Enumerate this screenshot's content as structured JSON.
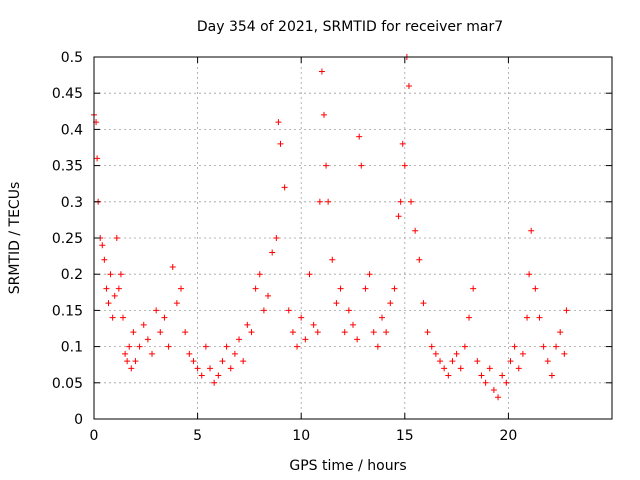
{
  "chart_data": {
    "type": "scatter",
    "title": "Day 354 of 2021, SRMTID for receiver mar7",
    "xlabel": "GPS time / hours",
    "ylabel": "SRMTID / TECUs",
    "xlim": [
      0,
      25
    ],
    "ylim": [
      0,
      0.5
    ],
    "grid": true,
    "marker": "+",
    "x_ticks": [
      {
        "value": 0,
        "label": "0"
      },
      {
        "value": 5,
        "label": "5"
      },
      {
        "value": 10,
        "label": "10"
      },
      {
        "value": 15,
        "label": "15"
      },
      {
        "value": 20,
        "label": "20"
      }
    ],
    "y_ticks": [
      {
        "value": 0,
        "label": "0"
      },
      {
        "value": 0.05,
        "label": "0.05"
      },
      {
        "value": 0.1,
        "label": "0.1"
      },
      {
        "value": 0.15,
        "label": "0.15"
      },
      {
        "value": 0.2,
        "label": "0.2"
      },
      {
        "value": 0.25,
        "label": "0.25"
      },
      {
        "value": 0.3,
        "label": "0.3"
      },
      {
        "value": 0.35,
        "label": "0.35"
      },
      {
        "value": 0.4,
        "label": "0.4"
      },
      {
        "value": 0.45,
        "label": "0.45"
      },
      {
        "value": 0.5,
        "label": "0.5"
      }
    ],
    "series": [
      {
        "name": "SRMTID",
        "color": "#ff0000",
        "x": [
          0.0,
          0.1,
          0.15,
          0.2,
          0.3,
          0.4,
          0.5,
          0.6,
          0.7,
          0.8,
          0.9,
          1.0,
          1.1,
          1.2,
          1.3,
          1.4,
          1.5,
          1.6,
          1.7,
          1.8,
          1.9,
          2.0,
          2.2,
          2.4,
          2.6,
          2.8,
          3.0,
          3.2,
          3.4,
          3.6,
          3.8,
          4.0,
          4.2,
          4.4,
          4.6,
          4.8,
          5.0,
          5.2,
          5.4,
          5.6,
          5.8,
          6.0,
          6.2,
          6.4,
          6.6,
          6.8,
          7.0,
          7.2,
          7.4,
          7.6,
          7.8,
          8.0,
          8.2,
          8.4,
          8.6,
          8.8,
          8.9,
          9.0,
          9.2,
          9.4,
          9.6,
          9.8,
          10.0,
          10.2,
          10.4,
          10.6,
          10.8,
          10.9,
          11.0,
          11.1,
          11.2,
          11.3,
          11.5,
          11.7,
          11.9,
          12.1,
          12.3,
          12.5,
          12.7,
          12.8,
          12.9,
          13.1,
          13.3,
          13.5,
          13.7,
          13.9,
          14.1,
          14.3,
          14.5,
          14.7,
          14.8,
          14.9,
          15.0,
          15.1,
          15.2,
          15.3,
          15.5,
          15.7,
          15.9,
          16.1,
          16.3,
          16.5,
          16.7,
          16.9,
          17.1,
          17.3,
          17.5,
          17.7,
          17.9,
          18.1,
          18.3,
          18.5,
          18.7,
          18.9,
          19.1,
          19.3,
          19.5,
          19.7,
          19.9,
          20.1,
          20.3,
          20.5,
          20.7,
          20.9,
          21.0,
          21.1,
          21.3,
          21.5,
          21.7,
          21.9,
          22.1,
          22.3,
          22.5,
          22.7,
          22.8
        ],
        "y": [
          0.42,
          0.41,
          0.36,
          0.3,
          0.25,
          0.24,
          0.22,
          0.18,
          0.16,
          0.2,
          0.14,
          0.17,
          0.25,
          0.18,
          0.2,
          0.14,
          0.09,
          0.08,
          0.1,
          0.07,
          0.12,
          0.08,
          0.1,
          0.13,
          0.11,
          0.09,
          0.15,
          0.12,
          0.14,
          0.1,
          0.21,
          0.16,
          0.18,
          0.12,
          0.09,
          0.08,
          0.07,
          0.06,
          0.1,
          0.07,
          0.05,
          0.06,
          0.08,
          0.1,
          0.07,
          0.09,
          0.11,
          0.08,
          0.13,
          0.12,
          0.18,
          0.2,
          0.15,
          0.17,
          0.23,
          0.25,
          0.41,
          0.38,
          0.32,
          0.15,
          0.12,
          0.1,
          0.14,
          0.11,
          0.2,
          0.13,
          0.12,
          0.3,
          0.48,
          0.42,
          0.35,
          0.3,
          0.22,
          0.16,
          0.18,
          0.12,
          0.15,
          0.13,
          0.11,
          0.39,
          0.35,
          0.18,
          0.2,
          0.12,
          0.1,
          0.14,
          0.12,
          0.16,
          0.18,
          0.28,
          0.3,
          0.38,
          0.35,
          0.5,
          0.46,
          0.3,
          0.26,
          0.22,
          0.16,
          0.12,
          0.1,
          0.09,
          0.08,
          0.07,
          0.06,
          0.08,
          0.09,
          0.07,
          0.1,
          0.14,
          0.18,
          0.08,
          0.06,
          0.05,
          0.07,
          0.04,
          0.03,
          0.06,
          0.05,
          0.08,
          0.1,
          0.07,
          0.09,
          0.14,
          0.2,
          0.26,
          0.18,
          0.14,
          0.1,
          0.08,
          0.06,
          0.1,
          0.12,
          0.09,
          0.15
        ]
      }
    ]
  }
}
